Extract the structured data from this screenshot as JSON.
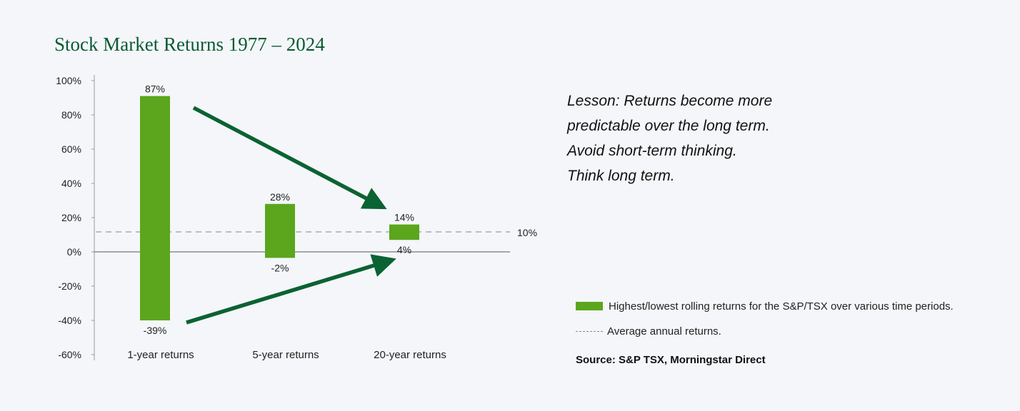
{
  "title": "Stock Market Returns 1977 – 2024",
  "lesson": [
    "Lesson: Returns become more",
    "predictable over the long term.",
    "Avoid short-term thinking.",
    "Think long term."
  ],
  "legend": {
    "bar_label": "Highest/lowest rolling returns for the S&P/TSX over various time periods.",
    "line_label": "Average annual returns."
  },
  "source": "Source: S&P TSX, Morningstar Direct",
  "colors": {
    "bar": "#5ba61d",
    "arrow": "#0b6232",
    "title": "#0a5a32",
    "average_line": "#aaaaaa"
  },
  "chart_data": {
    "type": "bar",
    "title": "Stock Market Returns 1977 – 2024",
    "categories": [
      "1-year returns",
      "5-year returns",
      "20-year returns"
    ],
    "series": [
      {
        "name": "Highest/lowest rolling returns for the S&P/TSX over various time periods.",
        "low": [
          -39,
          -2,
          4
        ],
        "high": [
          87,
          28,
          14
        ],
        "high_labels": [
          "87%",
          "28%",
          "14%"
        ],
        "low_labels": [
          "-39%",
          "-2%",
          "4%"
        ]
      }
    ],
    "average_line": {
      "value": 10,
      "label": "10%"
    },
    "yticks": [
      100,
      80,
      60,
      40,
      20,
      0,
      -20,
      -40,
      -60
    ],
    "ytick_labels": [
      "100%",
      "80%",
      "60%",
      "40%",
      "20%",
      "0%",
      "-20%",
      "-40%",
      "-60%"
    ],
    "ylim": [
      -60,
      100
    ],
    "grid": false,
    "legend_position": "bottom-right"
  }
}
